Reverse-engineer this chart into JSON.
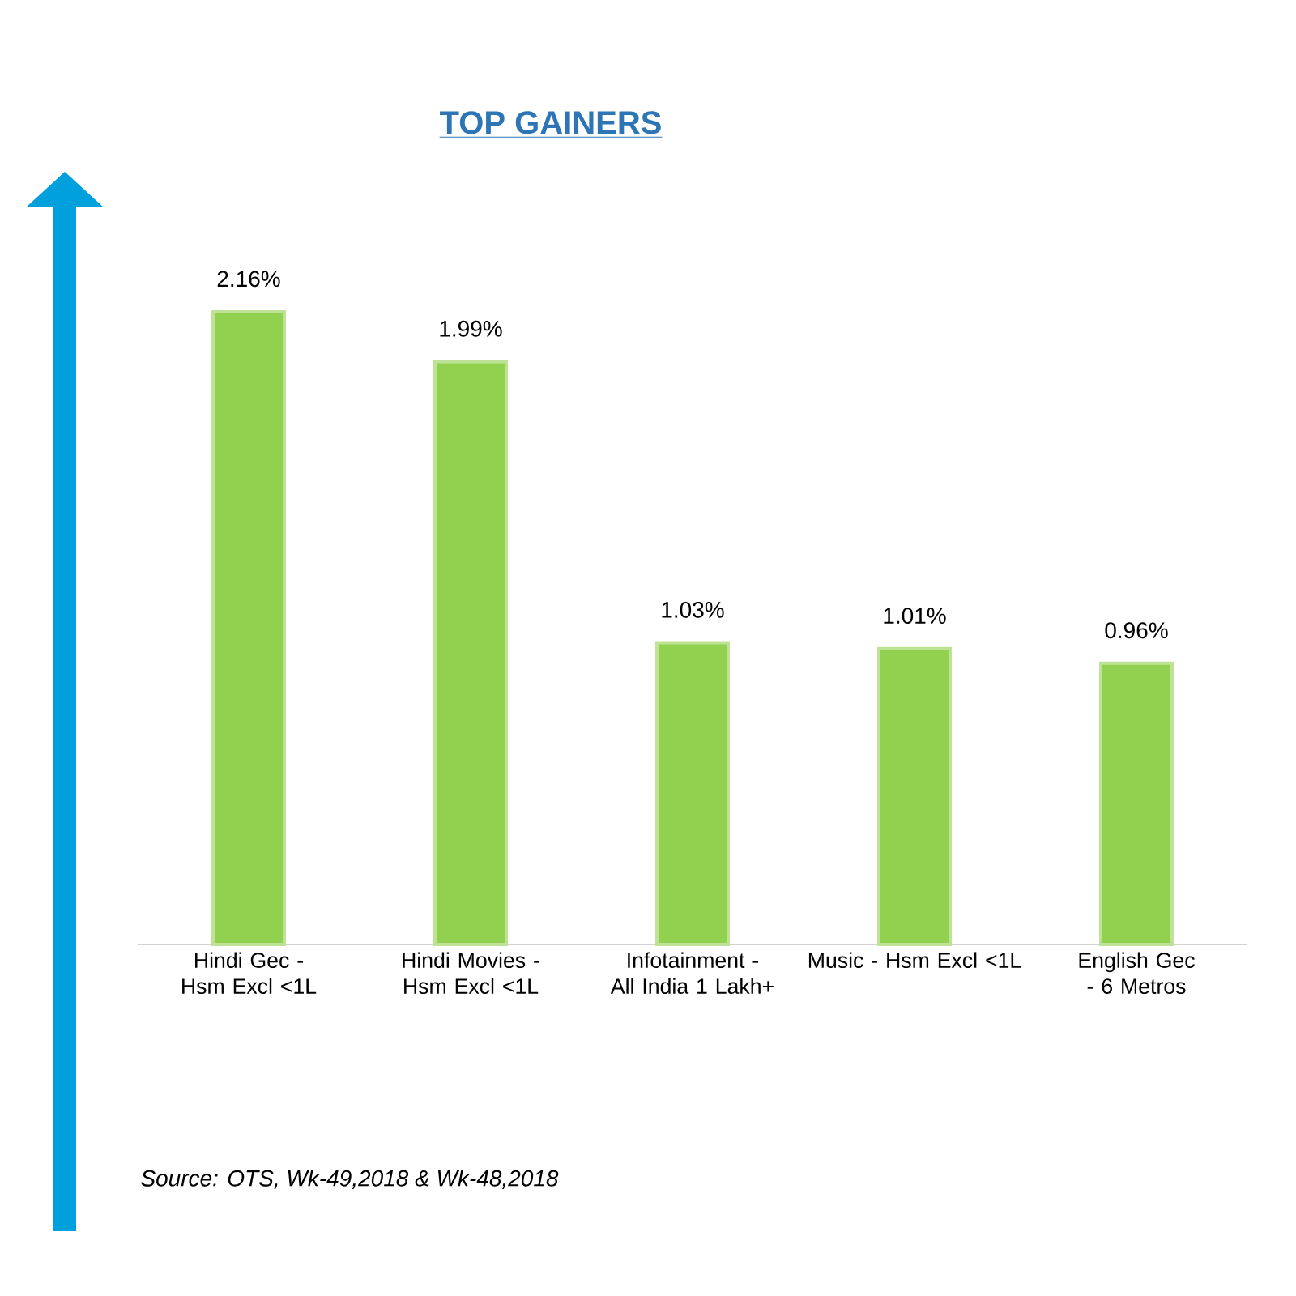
{
  "chart_data": {
    "type": "bar",
    "title": "TOP GAINERS",
    "categories": [
      "Hindi Gec - Hsm Excl <1L",
      "Hindi Movies - Hsm Excl <1L",
      "Infotainment - All India 1 Lakh+",
      "Music - Hsm Excl <1L",
      "English Gec - 6 Metros"
    ],
    "values": [
      2.16,
      1.99,
      1.03,
      1.01,
      0.96
    ],
    "value_labels": [
      "2.16%",
      "1.99%",
      "1.03%",
      "1.01%",
      "0.96%"
    ],
    "color": "#92d050",
    "annotations": [
      "Source: OTS, Wk-49,2018 & Wk-48,2018"
    ]
  }
}
